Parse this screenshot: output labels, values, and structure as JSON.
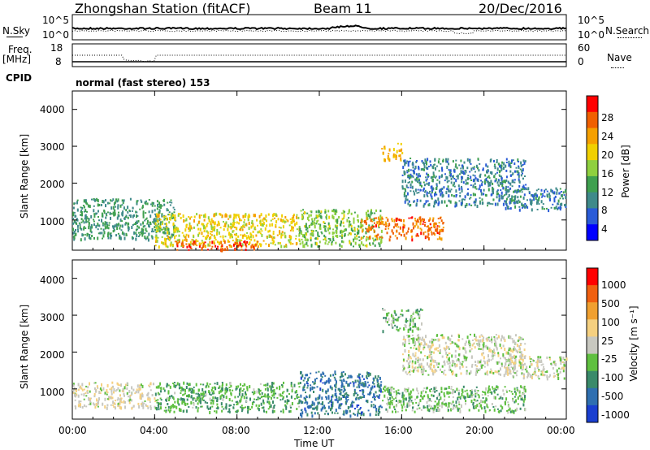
{
  "header": {
    "station": "Zhongshan Station (fitACF)",
    "beam": "Beam 11",
    "date": "20/Dec/2016"
  },
  "side_labels": {
    "nsky": "N.Sky",
    "nsearch": "N.Search",
    "freq": "Freq.",
    "freq_unit": "[MHz]",
    "nave": "Nave",
    "cpid": "CPID"
  },
  "noise_panel": {
    "left_ticks": [
      "10^5",
      "10^0"
    ],
    "right_ticks": [
      "10^5",
      "10^0"
    ]
  },
  "freq_panel": {
    "left_ticks": [
      "18",
      "8"
    ],
    "right_ticks": [
      "60",
      "0"
    ]
  },
  "cpid_text": "normal (fast stereo) 153",
  "x_axis": {
    "label": "Time UT",
    "ticks": [
      "00:00",
      "04:00",
      "08:00",
      "12:00",
      "16:00",
      "20:00",
      "00:00"
    ]
  },
  "power_panel": {
    "ylabel": "Slant Range [km]",
    "yticks": [
      "4000",
      "3000",
      "2000",
      "1000"
    ],
    "colorbar_label": "Power [dB]",
    "colorbar_ticks": [
      "28",
      "24",
      "20",
      "16",
      "12",
      "8",
      "4"
    ],
    "colors": [
      "#0000ff",
      "#2a5bd7",
      "#3f8a8a",
      "#3fa04f",
      "#8fd03f",
      "#f0d000",
      "#f5a000",
      "#f06000",
      "#ff0000"
    ]
  },
  "velocity_panel": {
    "ylabel": "Slant Range [km]",
    "yticks": [
      "4000",
      "3000",
      "2000",
      "1000"
    ],
    "colorbar_label": "Velocity [m s⁻¹]",
    "colorbar_ticks": [
      "1000",
      "500",
      "100",
      "25",
      "-25",
      "-100",
      "-500",
      "-1000"
    ],
    "colors": [
      "#1a3fd0",
      "#2f6fb0",
      "#3a8a6a",
      "#5fc040",
      "#c8c8c0",
      "#f5d080",
      "#f0a030",
      "#f06010",
      "#ff0000"
    ]
  },
  "chart_data": {
    "type": "heatmap",
    "title": "Zhongshan Station (fitACF) Beam 11 20/Dec/2016",
    "xlabel": "Time UT",
    "ylabel": "Slant Range [km]",
    "x_range_hours": [
      0,
      24
    ],
    "y_range_km": [
      180,
      4500
    ],
    "x_ticks_hours": [
      0,
      4,
      8,
      12,
      16,
      20,
      24
    ],
    "y_ticks_km": [
      1000,
      2000,
      3000,
      4000
    ],
    "panels": [
      {
        "name": "Power",
        "unit": "dB",
        "scale": [
          0,
          30
        ],
        "colorbar_ticks": [
          4,
          8,
          12,
          16,
          20,
          24,
          28
        ],
        "regions": [
          {
            "t_start": 0,
            "t_end": 5,
            "r_start": 500,
            "r_end": 1600,
            "value": 10
          },
          {
            "t_start": 4,
            "t_end": 11,
            "r_start": 300,
            "r_end": 1200,
            "value": 18
          },
          {
            "t_start": 5,
            "t_end": 9,
            "r_start": 200,
            "r_end": 450,
            "value": 26
          },
          {
            "t_start": 11,
            "t_end": 15,
            "r_start": 300,
            "r_end": 1300,
            "value": 14
          },
          {
            "t_start": 14,
            "t_end": 18,
            "r_start": 500,
            "r_end": 1100,
            "value": 24
          },
          {
            "t_start": 15,
            "t_end": 16,
            "r_start": 2600,
            "r_end": 3100,
            "value": 20
          },
          {
            "t_start": 16,
            "t_end": 22,
            "r_start": 1400,
            "r_end": 2700,
            "value": 8
          },
          {
            "t_start": 21,
            "t_end": 24,
            "r_start": 1300,
            "r_end": 1900,
            "value": 8
          }
        ]
      },
      {
        "name": "Velocity",
        "unit": "m s^-1",
        "scale": [
          -1000,
          1000
        ],
        "colorbar_ticks": [
          1000,
          500,
          100,
          25,
          -25,
          -100,
          -500,
          -1000
        ],
        "regions": [
          {
            "t_start": 0,
            "t_end": 4,
            "r_start": 500,
            "r_end": 1200,
            "value": 50
          },
          {
            "t_start": 4,
            "t_end": 11,
            "r_start": 400,
            "r_end": 1200,
            "value": -300
          },
          {
            "t_start": 11,
            "t_end": 15,
            "r_start": 300,
            "r_end": 1500,
            "value": -600
          },
          {
            "t_start": 15,
            "t_end": 22,
            "r_start": 400,
            "r_end": 1100,
            "value": -200
          },
          {
            "t_start": 16,
            "t_end": 22,
            "r_start": 1400,
            "r_end": 2500,
            "value": 0
          },
          {
            "t_start": 15,
            "t_end": 17,
            "r_start": 2600,
            "r_end": 3200,
            "value": -200
          },
          {
            "t_start": 21,
            "t_end": 24,
            "r_start": 1300,
            "r_end": 1900,
            "value": 0
          }
        ]
      }
    ]
  }
}
